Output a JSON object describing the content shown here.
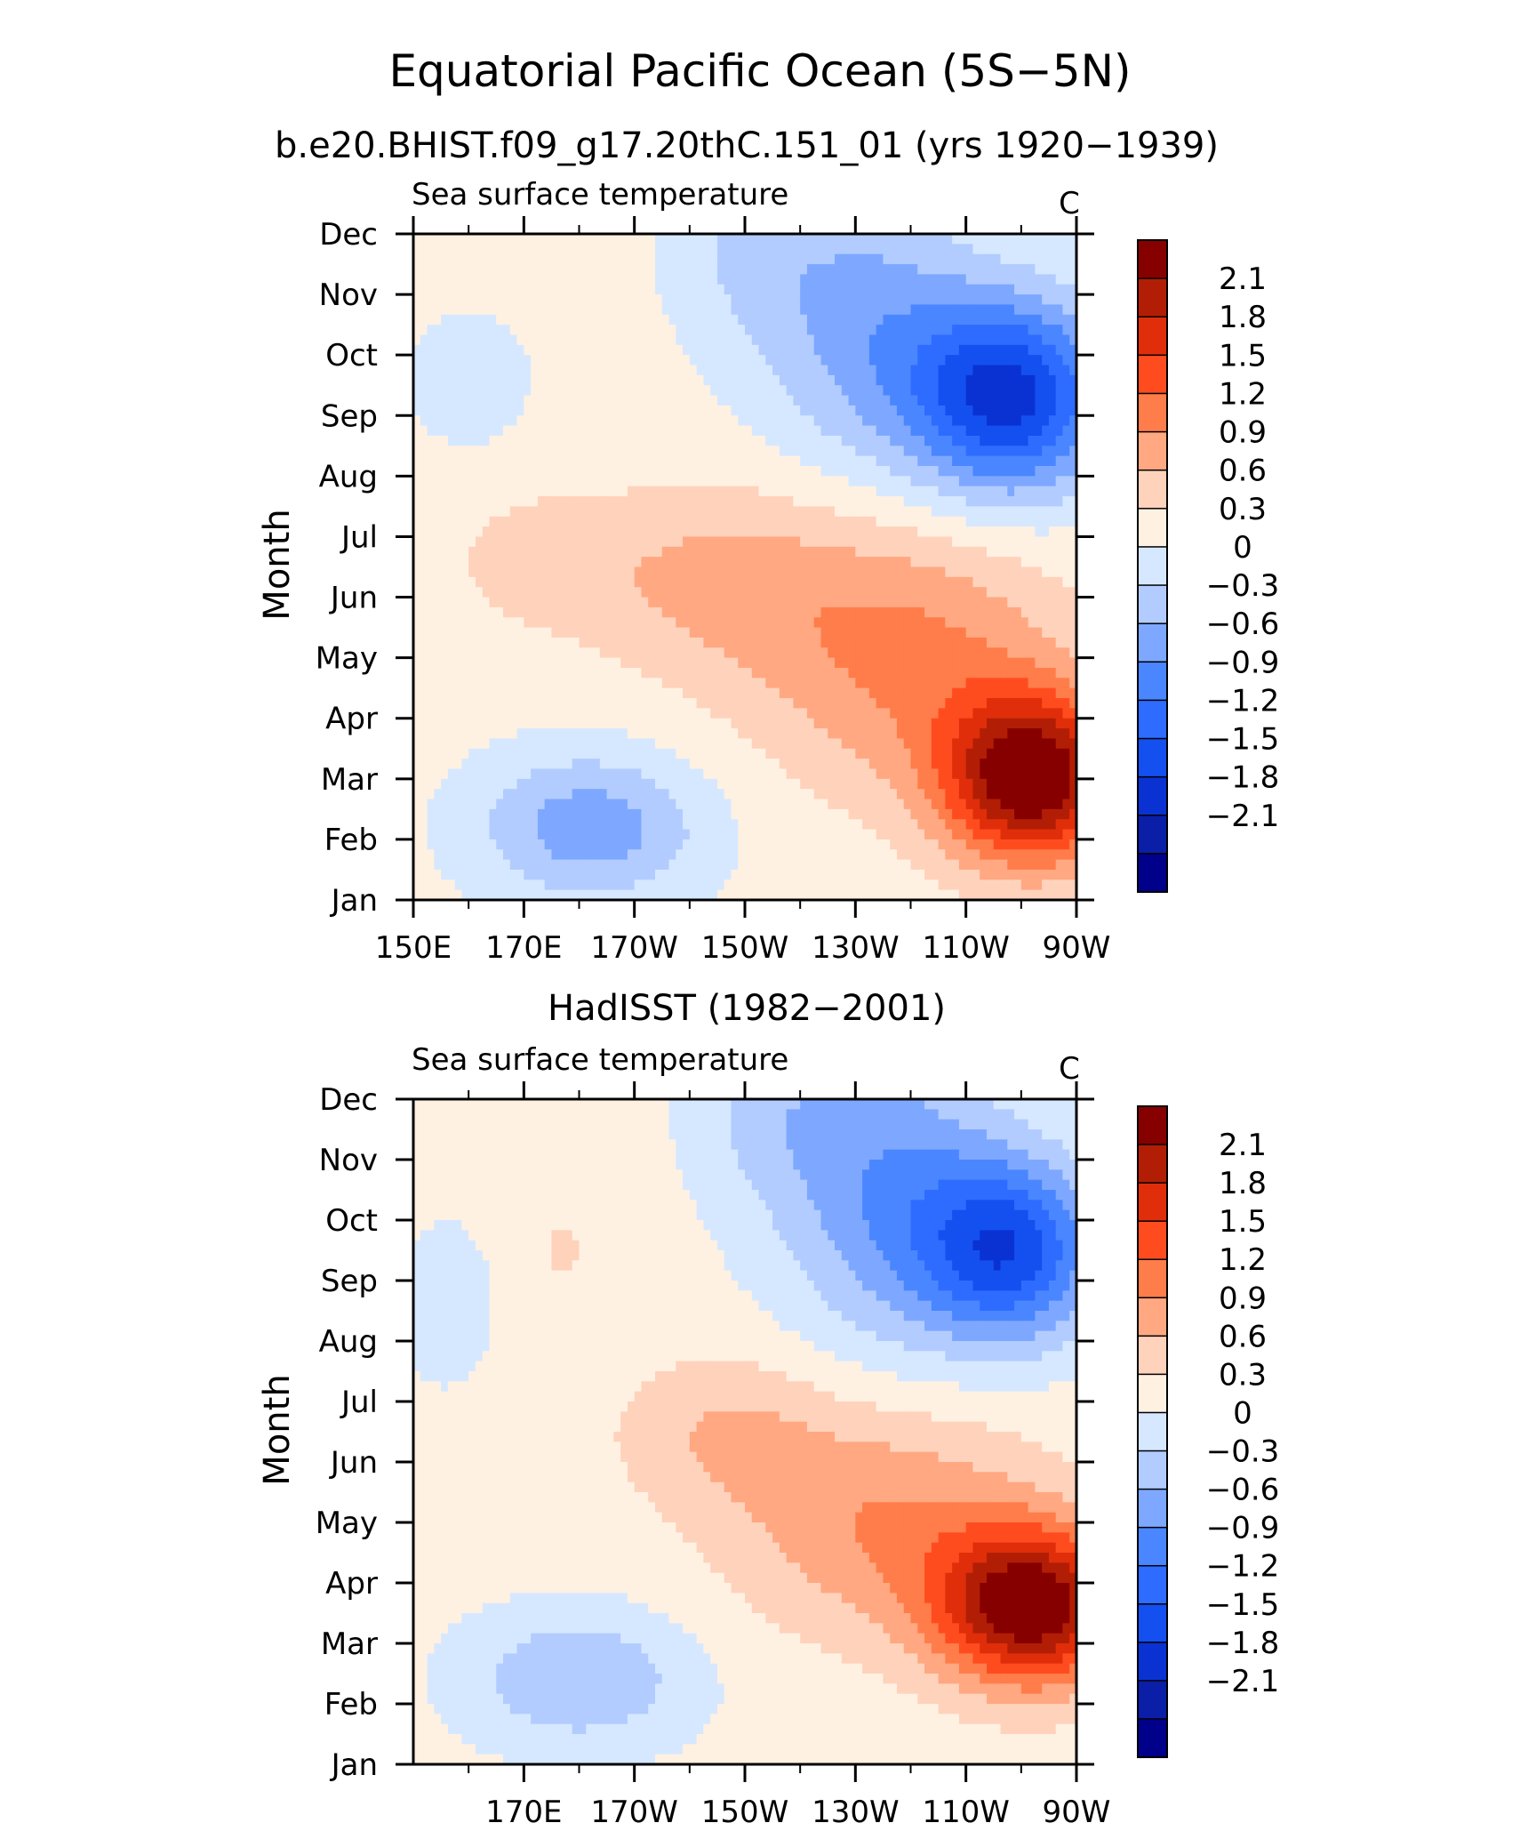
{
  "figure": {
    "title": "Equatorial Pacific Ocean (5S−5N)"
  },
  "colors": {
    "levels": [
      "#00008b",
      "#0a1ea8",
      "#0a32d2",
      "#1450f0",
      "#2e6cff",
      "#4a86ff",
      "#7ea8ff",
      "#b2ccff",
      "#d6e8ff",
      "#fff1e2",
      "#ffd2bc",
      "#ffa882",
      "#ff7d4a",
      "#ff4c1e",
      "#e02e0a",
      "#b21e05",
      "#870000"
    ]
  },
  "chart_data": [
    {
      "type": "heatmap",
      "title": "b.e20.BHIST.f09_g17.20thC.151_01 (yrs 1920−1939)",
      "subtitle_left": "Sea surface temperature",
      "subtitle_right": "C",
      "ylabel": "Month",
      "x_range_deg_east": [
        150,
        270
      ],
      "x_ticks": [
        {
          "value": 150,
          "label": "150E"
        },
        {
          "value": 170,
          "label": "170E"
        },
        {
          "value": 190,
          "label": "170W"
        },
        {
          "value": 210,
          "label": "150W"
        },
        {
          "value": 230,
          "label": "130W"
        },
        {
          "value": 250,
          "label": "110W"
        },
        {
          "value": 270,
          "label": "90W"
        }
      ],
      "y_ticks": [
        "Jan",
        "Feb",
        "Mar",
        "Apr",
        "May",
        "Jun",
        "Jul",
        "Aug",
        "Sep",
        "Oct",
        "Nov",
        "Dec"
      ],
      "colorbar": {
        "levels": [
          -2.4,
          -2.1,
          -1.8,
          -1.5,
          -1.2,
          -0.9,
          -0.6,
          -0.3,
          0,
          0.3,
          0.6,
          0.9,
          1.2,
          1.5,
          1.8,
          2.1
        ],
        "labels": [
          "2.1",
          "1.8",
          "1.5",
          "1.2",
          "0.9",
          "0.6",
          "0.3",
          "0",
          "−0.3",
          "−0.6",
          "−0.9",
          "−1.2",
          "−1.5",
          "−1.8",
          "−2.1"
        ]
      },
      "features": [
        {
          "lon": 262,
          "month": 2,
          "amp": 2.3,
          "slon": 16,
          "smon": 1.4
        },
        {
          "lon": 240,
          "month": 4,
          "amp": 0.85,
          "slon": 28,
          "smon": 2.2
        },
        {
          "lon": 204,
          "month": 5.3,
          "amp": 0.55,
          "slon": 26,
          "smon": 1.6
        },
        {
          "lon": 172,
          "month": 5.6,
          "amp": 0.35,
          "slon": 14,
          "smon": 1.0
        },
        {
          "lon": 258,
          "month": 8.3,
          "amp": -2.0,
          "slon": 18,
          "smon": 1.6
        },
        {
          "lon": 232,
          "month": 9.5,
          "amp": -0.8,
          "slon": 20,
          "smon": 2.4
        },
        {
          "lon": 210,
          "month": 10.8,
          "amp": -0.35,
          "slon": 14,
          "smon": 1.5
        },
        {
          "lon": 182,
          "month": 1.2,
          "amp": -0.9,
          "slon": 20,
          "smon": 1.2
        },
        {
          "lon": 160,
          "month": 8.6,
          "amp": -0.35,
          "slon": 10,
          "smon": 1.0
        }
      ],
      "baseline": 0.1
    },
    {
      "type": "heatmap",
      "title": "HadISST (1982−2001)",
      "subtitle_left": "Sea surface temperature",
      "subtitle_right": "C",
      "ylabel": "Month",
      "x_range_deg_east": [
        150,
        270
      ],
      "x_ticks": [
        {
          "value": 170,
          "label": "170E"
        },
        {
          "value": 190,
          "label": "170W"
        },
        {
          "value": 210,
          "label": "150W"
        },
        {
          "value": 230,
          "label": "130W"
        },
        {
          "value": 250,
          "label": "110W"
        },
        {
          "value": 270,
          "label": "90W"
        }
      ],
      "y_ticks": [
        "Jan",
        "Feb",
        "Mar",
        "Apr",
        "May",
        "Jun",
        "Jul",
        "Aug",
        "Sep",
        "Oct",
        "Nov",
        "Dec"
      ],
      "colorbar": {
        "levels": [
          -2.4,
          -2.1,
          -1.8,
          -1.5,
          -1.2,
          -0.9,
          -0.6,
          -0.3,
          0,
          0.3,
          0.6,
          0.9,
          1.2,
          1.5,
          1.8,
          2.1
        ],
        "labels": [
          "2.1",
          "1.8",
          "1.5",
          "1.2",
          "0.9",
          "0.6",
          "0.3",
          "0",
          "−0.3",
          "−0.6",
          "−0.9",
          "−1.2",
          "−1.5",
          "−1.8",
          "−2.1"
        ]
      },
      "features": [
        {
          "lon": 262,
          "month": 2.6,
          "amp": 2.25,
          "slon": 17,
          "smon": 1.3
        },
        {
          "lon": 236,
          "month": 4.0,
          "amp": 0.8,
          "slon": 28,
          "smon": 1.9
        },
        {
          "lon": 206,
          "month": 5.5,
          "amp": 0.45,
          "slon": 20,
          "smon": 1.3
        },
        {
          "lon": 258,
          "month": 8.5,
          "amp": -1.7,
          "slon": 16,
          "smon": 1.5
        },
        {
          "lon": 236,
          "month": 9.5,
          "amp": -0.95,
          "slon": 20,
          "smon": 2.6
        },
        {
          "lon": 214,
          "month": 10.8,
          "amp": -0.4,
          "slon": 14,
          "smon": 1.5
        },
        {
          "lon": 180,
          "month": 1.4,
          "amp": -0.7,
          "slon": 20,
          "smon": 1.1
        },
        {
          "lon": 156,
          "month": 7.6,
          "amp": -0.3,
          "slon": 8,
          "smon": 1.3
        },
        {
          "lon": 177,
          "month": 8.5,
          "amp": 0.3,
          "slon": 4,
          "smon": 0.5
        }
      ],
      "baseline": 0.1
    }
  ]
}
